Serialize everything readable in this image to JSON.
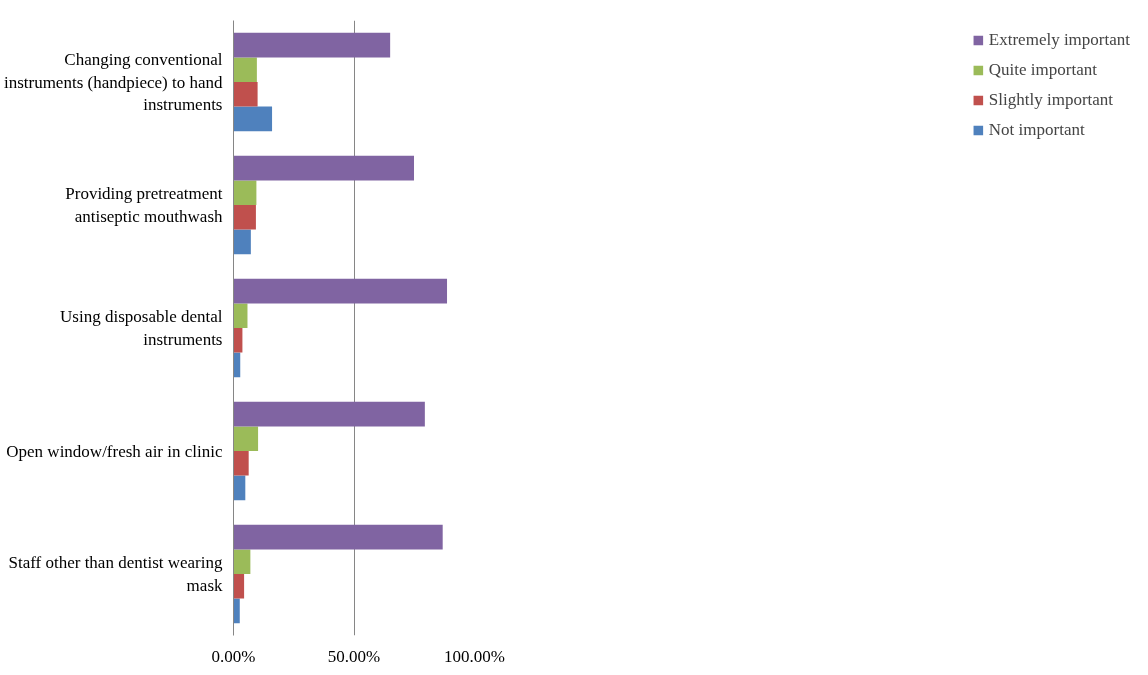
{
  "chart_data": {
    "type": "bar",
    "orientation": "horizontal",
    "categories": [
      "Changing conventional instruments (handpiece) to hand instruments",
      "Providing pretreatment antiseptic mouthwash",
      "Using disposable dental instruments",
      "Open window/fresh air in clinic",
      "Staff other than dentist wearing mask"
    ],
    "series": [
      {
        "name": "Not important",
        "color": "#4f81bd",
        "values": [
          16.0,
          7.2,
          2.8,
          4.9,
          2.6
        ]
      },
      {
        "name": "Slightly important",
        "color": "#c0504d",
        "values": [
          10.0,
          9.3,
          3.7,
          6.3,
          4.4
        ]
      },
      {
        "name": "Quite important",
        "color": "#9bbb59",
        "values": [
          9.7,
          9.5,
          5.8,
          10.2,
          7.0
        ]
      },
      {
        "name": "Extremely important",
        "color": "#8064a2",
        "values": [
          65.0,
          74.9,
          88.6,
          79.4,
          86.8
        ]
      }
    ],
    "xlim": [
      0,
      100
    ],
    "xticks": [
      {
        "value": 0,
        "label": "0.00%"
      },
      {
        "value": 50,
        "label": "50.00%"
      },
      {
        "value": 100,
        "label": "100.00%"
      }
    ],
    "grid": "x",
    "legend": "right"
  }
}
